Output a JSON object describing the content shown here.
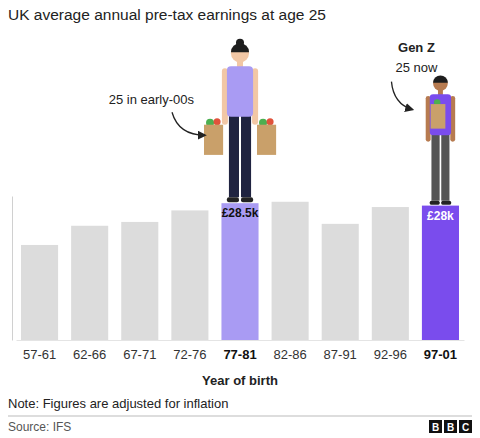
{
  "chart_data": {
    "type": "bar",
    "title": "UK average annual pre-tax earnings at age 25",
    "categories": [
      "57-61",
      "62-66",
      "67-71",
      "72-76",
      "77-81",
      "82-86",
      "87-91",
      "92-96",
      "97-01"
    ],
    "values": [
      19.8,
      23.8,
      24.6,
      27,
      28.5,
      28.8,
      24.2,
      27.7,
      28
    ],
    "value_labels": [
      null,
      null,
      null,
      null,
      "£28.5k",
      null,
      null,
      null,
      "£28k"
    ],
    "colors": [
      "#dcdcdc",
      "#dcdcdc",
      "#dcdcdc",
      "#dcdcdc",
      "#a99bf3",
      "#dcdcdc",
      "#dcdcdc",
      "#dcdcdc",
      "#7a4ced"
    ],
    "data_labels": true,
    "x_label": "Year of birth",
    "ylim": [
      0,
      30
    ],
    "tick_labels": "x",
    "annotations": [
      {
        "lines": [
          "25 in early-00s"
        ]
      },
      {
        "lines": [
          "Gen Z",
          "25 now"
        ]
      }
    ],
    "note": "Note: Figures are adjusted for inflation",
    "source": "Source: IFS",
    "logo": "BBC"
  }
}
